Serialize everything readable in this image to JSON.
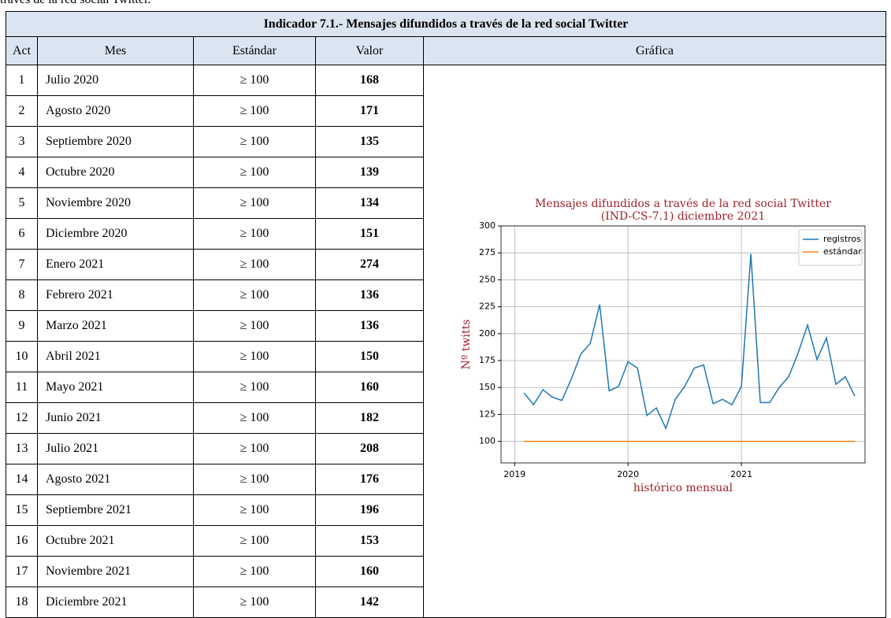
{
  "intro": "través de la red social Twitter.",
  "table": {
    "title": "Indicador 7.1.- Mensajes difundidos a través de la red social Twitter",
    "columns": [
      "Act",
      "Mes",
      "Estándar",
      "Valor",
      "Gráfica"
    ],
    "rows": [
      [
        "1",
        "Julio 2020",
        "≥ 100",
        "168"
      ],
      [
        "2",
        "Agosto 2020",
        "≥ 100",
        "171"
      ],
      [
        "3",
        "Septiembre 2020",
        "≥ 100",
        "135"
      ],
      [
        "4",
        "Octubre 2020",
        "≥ 100",
        "139"
      ],
      [
        "5",
        "Noviembre 2020",
        "≥ 100",
        "134"
      ],
      [
        "6",
        "Diciembre 2020",
        "≥ 100",
        "151"
      ],
      [
        "7",
        "Enero 2021",
        "≥ 100",
        "274"
      ],
      [
        "8",
        "Febrero 2021",
        "≥ 100",
        "136"
      ],
      [
        "9",
        "Marzo 2021",
        "≥ 100",
        "136"
      ],
      [
        "10",
        "Abril 2021",
        "≥ 100",
        "150"
      ],
      [
        "11",
        "Mayo 2021",
        "≥ 100",
        "160"
      ],
      [
        "12",
        "Junio 2021",
        "≥ 100",
        "182"
      ],
      [
        "13",
        "Julio 2021",
        "≥ 100",
        "208"
      ],
      [
        "14",
        "Agosto 2021",
        "≥ 100",
        "176"
      ],
      [
        "15",
        "Septiembre 2021",
        "≥ 100",
        "196"
      ],
      [
        "16",
        "Octubre 2021",
        "≥ 100",
        "153"
      ],
      [
        "17",
        "Noviembre 2021",
        "≥ 100",
        "160"
      ],
      [
        "18",
        "Diciembre 2021",
        "≥ 100",
        "142"
      ]
    ]
  },
  "chart_data": {
    "type": "line",
    "title": [
      "Mensajes difundidos a través de la red social Twitter",
      "(IND-CS-7.1) diciembre 2021"
    ],
    "xlabel": "histórico mensual",
    "ylabel": "Nº twitts",
    "x": [
      "2019-01",
      "2019-02",
      "2019-03",
      "2019-04",
      "2019-05",
      "2019-06",
      "2019-07",
      "2019-08",
      "2019-09",
      "2019-10",
      "2019-11",
      "2019-12",
      "2020-01",
      "2020-02",
      "2020-03",
      "2020-04",
      "2020-05",
      "2020-06",
      "2020-07",
      "2020-08",
      "2020-09",
      "2020-10",
      "2020-11",
      "2020-12",
      "2021-01",
      "2021-02",
      "2021-03",
      "2021-04",
      "2021-05",
      "2021-06",
      "2021-07",
      "2021-08",
      "2021-09",
      "2021-10",
      "2021-11",
      "2021-12"
    ],
    "series": [
      {
        "name": "registros",
        "color": "#1f77b4",
        "values": [
          145,
          134,
          148,
          141,
          138,
          158,
          181,
          191,
          227,
          147,
          151,
          174,
          168,
          124,
          131,
          112,
          139,
          151,
          168,
          171,
          135,
          139,
          134,
          151,
          274,
          136,
          136,
          150,
          160,
          182,
          208,
          176,
          196,
          153,
          160,
          142
        ]
      },
      {
        "name": "estándar",
        "color": "#ff7f0e",
        "values": [
          100,
          100,
          100,
          100,
          100,
          100,
          100,
          100,
          100,
          100,
          100,
          100,
          100,
          100,
          100,
          100,
          100,
          100,
          100,
          100,
          100,
          100,
          100,
          100,
          100,
          100,
          100,
          100,
          100,
          100,
          100,
          100,
          100,
          100,
          100,
          100
        ]
      }
    ],
    "xlim": [
      2018.88,
      2022.09
    ],
    "xticks": [
      2019,
      2020,
      2021
    ],
    "ylim": [
      80,
      300
    ],
    "yticks": [
      100,
      125,
      150,
      175,
      200,
      225,
      250,
      275,
      300
    ],
    "grid": true,
    "legend": "upper right"
  }
}
